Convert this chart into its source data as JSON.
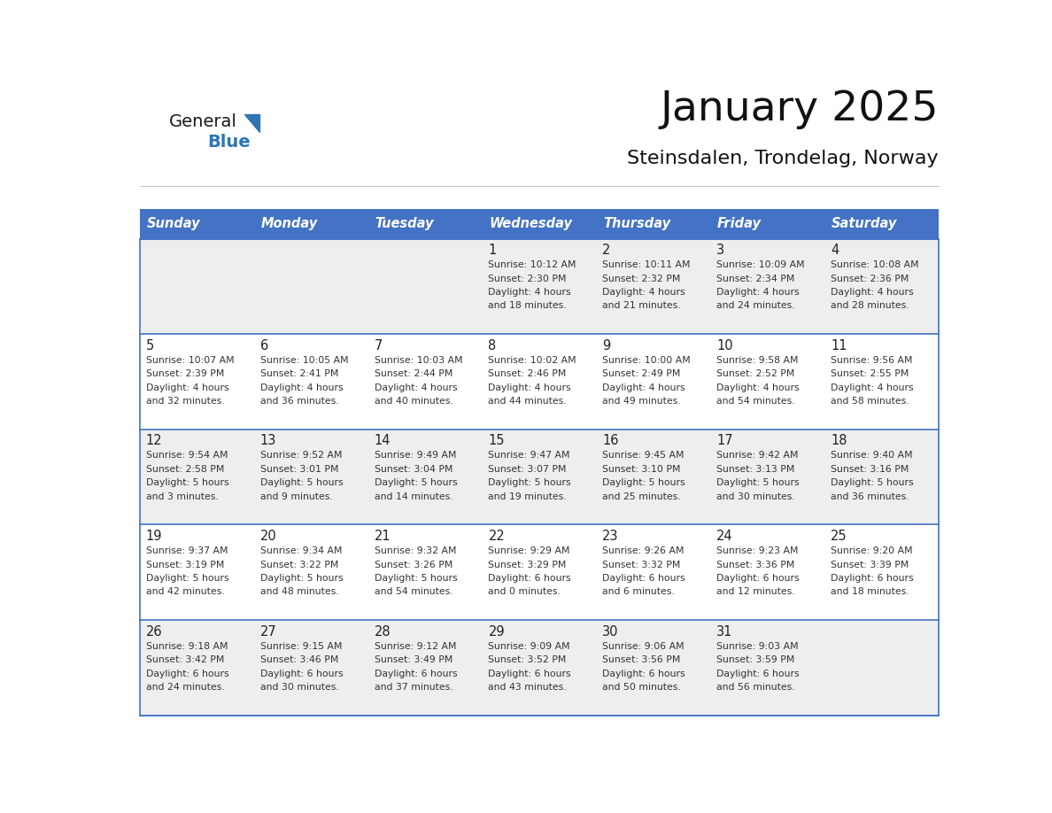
{
  "title": "January 2025",
  "subtitle": "Steinsdalen, Trondelag, Norway",
  "days_of_week": [
    "Sunday",
    "Monday",
    "Tuesday",
    "Wednesday",
    "Thursday",
    "Friday",
    "Saturday"
  ],
  "header_bg": "#4472C4",
  "header_text": "#FFFFFF",
  "cell_bg_odd": "#EEEEEE",
  "cell_bg_even": "#FFFFFF",
  "cell_border": "#4472C4",
  "day_number_color": "#222222",
  "text_color": "#333333",
  "title_color": "#111111",
  "subtitle_color": "#111111",
  "logo_general_color": "#1a1a1a",
  "logo_blue_color": "#2E75B6",
  "calendar": [
    [
      null,
      null,
      null,
      {
        "day": 1,
        "sunrise": "Sunrise: 10:12 AM",
        "sunset": "Sunset: 2:30 PM",
        "daylight": "Daylight: 4 hours",
        "daylight2": "and 18 minutes."
      },
      {
        "day": 2,
        "sunrise": "Sunrise: 10:11 AM",
        "sunset": "Sunset: 2:32 PM",
        "daylight": "Daylight: 4 hours",
        "daylight2": "and 21 minutes."
      },
      {
        "day": 3,
        "sunrise": "Sunrise: 10:09 AM",
        "sunset": "Sunset: 2:34 PM",
        "daylight": "Daylight: 4 hours",
        "daylight2": "and 24 minutes."
      },
      {
        "day": 4,
        "sunrise": "Sunrise: 10:08 AM",
        "sunset": "Sunset: 2:36 PM",
        "daylight": "Daylight: 4 hours",
        "daylight2": "and 28 minutes."
      }
    ],
    [
      {
        "day": 5,
        "sunrise": "Sunrise: 10:07 AM",
        "sunset": "Sunset: 2:39 PM",
        "daylight": "Daylight: 4 hours",
        "daylight2": "and 32 minutes."
      },
      {
        "day": 6,
        "sunrise": "Sunrise: 10:05 AM",
        "sunset": "Sunset: 2:41 PM",
        "daylight": "Daylight: 4 hours",
        "daylight2": "and 36 minutes."
      },
      {
        "day": 7,
        "sunrise": "Sunrise: 10:03 AM",
        "sunset": "Sunset: 2:44 PM",
        "daylight": "Daylight: 4 hours",
        "daylight2": "and 40 minutes."
      },
      {
        "day": 8,
        "sunrise": "Sunrise: 10:02 AM",
        "sunset": "Sunset: 2:46 PM",
        "daylight": "Daylight: 4 hours",
        "daylight2": "and 44 minutes."
      },
      {
        "day": 9,
        "sunrise": "Sunrise: 10:00 AM",
        "sunset": "Sunset: 2:49 PM",
        "daylight": "Daylight: 4 hours",
        "daylight2": "and 49 minutes."
      },
      {
        "day": 10,
        "sunrise": "Sunrise: 9:58 AM",
        "sunset": "Sunset: 2:52 PM",
        "daylight": "Daylight: 4 hours",
        "daylight2": "and 54 minutes."
      },
      {
        "day": 11,
        "sunrise": "Sunrise: 9:56 AM",
        "sunset": "Sunset: 2:55 PM",
        "daylight": "Daylight: 4 hours",
        "daylight2": "and 58 minutes."
      }
    ],
    [
      {
        "day": 12,
        "sunrise": "Sunrise: 9:54 AM",
        "sunset": "Sunset: 2:58 PM",
        "daylight": "Daylight: 5 hours",
        "daylight2": "and 3 minutes."
      },
      {
        "day": 13,
        "sunrise": "Sunrise: 9:52 AM",
        "sunset": "Sunset: 3:01 PM",
        "daylight": "Daylight: 5 hours",
        "daylight2": "and 9 minutes."
      },
      {
        "day": 14,
        "sunrise": "Sunrise: 9:49 AM",
        "sunset": "Sunset: 3:04 PM",
        "daylight": "Daylight: 5 hours",
        "daylight2": "and 14 minutes."
      },
      {
        "day": 15,
        "sunrise": "Sunrise: 9:47 AM",
        "sunset": "Sunset: 3:07 PM",
        "daylight": "Daylight: 5 hours",
        "daylight2": "and 19 minutes."
      },
      {
        "day": 16,
        "sunrise": "Sunrise: 9:45 AM",
        "sunset": "Sunset: 3:10 PM",
        "daylight": "Daylight: 5 hours",
        "daylight2": "and 25 minutes."
      },
      {
        "day": 17,
        "sunrise": "Sunrise: 9:42 AM",
        "sunset": "Sunset: 3:13 PM",
        "daylight": "Daylight: 5 hours",
        "daylight2": "and 30 minutes."
      },
      {
        "day": 18,
        "sunrise": "Sunrise: 9:40 AM",
        "sunset": "Sunset: 3:16 PM",
        "daylight": "Daylight: 5 hours",
        "daylight2": "and 36 minutes."
      }
    ],
    [
      {
        "day": 19,
        "sunrise": "Sunrise: 9:37 AM",
        "sunset": "Sunset: 3:19 PM",
        "daylight": "Daylight: 5 hours",
        "daylight2": "and 42 minutes."
      },
      {
        "day": 20,
        "sunrise": "Sunrise: 9:34 AM",
        "sunset": "Sunset: 3:22 PM",
        "daylight": "Daylight: 5 hours",
        "daylight2": "and 48 minutes."
      },
      {
        "day": 21,
        "sunrise": "Sunrise: 9:32 AM",
        "sunset": "Sunset: 3:26 PM",
        "daylight": "Daylight: 5 hours",
        "daylight2": "and 54 minutes."
      },
      {
        "day": 22,
        "sunrise": "Sunrise: 9:29 AM",
        "sunset": "Sunset: 3:29 PM",
        "daylight": "Daylight: 6 hours",
        "daylight2": "and 0 minutes."
      },
      {
        "day": 23,
        "sunrise": "Sunrise: 9:26 AM",
        "sunset": "Sunset: 3:32 PM",
        "daylight": "Daylight: 6 hours",
        "daylight2": "and 6 minutes."
      },
      {
        "day": 24,
        "sunrise": "Sunrise: 9:23 AM",
        "sunset": "Sunset: 3:36 PM",
        "daylight": "Daylight: 6 hours",
        "daylight2": "and 12 minutes."
      },
      {
        "day": 25,
        "sunrise": "Sunrise: 9:20 AM",
        "sunset": "Sunset: 3:39 PM",
        "daylight": "Daylight: 6 hours",
        "daylight2": "and 18 minutes."
      }
    ],
    [
      {
        "day": 26,
        "sunrise": "Sunrise: 9:18 AM",
        "sunset": "Sunset: 3:42 PM",
        "daylight": "Daylight: 6 hours",
        "daylight2": "and 24 minutes."
      },
      {
        "day": 27,
        "sunrise": "Sunrise: 9:15 AM",
        "sunset": "Sunset: 3:46 PM",
        "daylight": "Daylight: 6 hours",
        "daylight2": "and 30 minutes."
      },
      {
        "day": 28,
        "sunrise": "Sunrise: 9:12 AM",
        "sunset": "Sunset: 3:49 PM",
        "daylight": "Daylight: 6 hours",
        "daylight2": "and 37 minutes."
      },
      {
        "day": 29,
        "sunrise": "Sunrise: 9:09 AM",
        "sunset": "Sunset: 3:52 PM",
        "daylight": "Daylight: 6 hours",
        "daylight2": "and 43 minutes."
      },
      {
        "day": 30,
        "sunrise": "Sunrise: 9:06 AM",
        "sunset": "Sunset: 3:56 PM",
        "daylight": "Daylight: 6 hours",
        "daylight2": "and 50 minutes."
      },
      {
        "day": 31,
        "sunrise": "Sunrise: 9:03 AM",
        "sunset": "Sunset: 3:59 PM",
        "daylight": "Daylight: 6 hours",
        "daylight2": "and 56 minutes."
      },
      null
    ]
  ]
}
